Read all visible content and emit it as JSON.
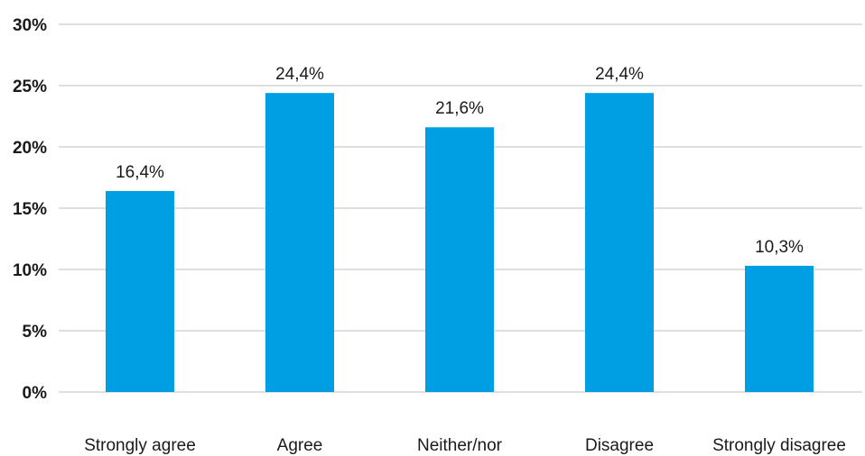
{
  "chart_data": {
    "type": "bar",
    "categories": [
      "Strongly agree",
      "Agree",
      "Neither/nor",
      "Disagree",
      "Strongly disagree"
    ],
    "values": [
      16.4,
      24.4,
      21.6,
      24.4,
      10.3
    ],
    "value_labels": [
      "16,4%",
      "24,4%",
      "21,6%",
      "24,4%",
      "10,3%"
    ],
    "yticks": [
      0,
      5,
      10,
      15,
      20,
      25,
      30
    ],
    "ytick_labels": [
      "0%",
      "5%",
      "10%",
      "15%",
      "20%",
      "25%",
      "30%"
    ],
    "ylim": [
      0,
      30
    ],
    "title": "",
    "xlabel": "",
    "ylabel": "",
    "grid": true,
    "legend": "none",
    "bar_color": "#009fe3"
  }
}
